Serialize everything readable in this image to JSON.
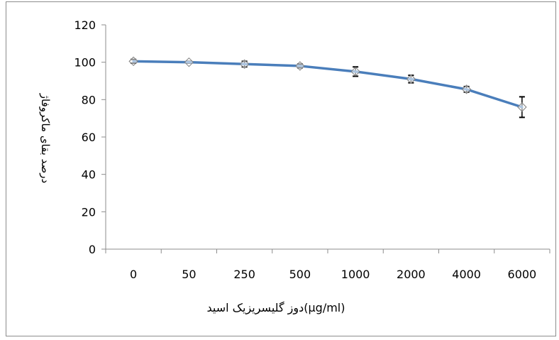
{
  "chart_data": {
    "type": "line",
    "xlabel": "دوز گلیسریزیک اسید(µg/ml)",
    "ylabel": "درصد بقای ماکروفاژ",
    "categories": [
      "0",
      "50",
      "250",
      "500",
      "1000",
      "2000",
      "4000",
      "6000"
    ],
    "ylim": [
      0,
      120
    ],
    "yticks": [
      0,
      20,
      40,
      60,
      80,
      100,
      120
    ],
    "grid": false,
    "legend": "none",
    "series": [
      {
        "values": [
          100.5,
          100,
          99,
          98,
          95,
          91,
          85.5,
          76
        ],
        "error": [
          1,
          0.5,
          1.5,
          1,
          2.5,
          2,
          1.5,
          5.5
        ],
        "color": "#4a7ebb",
        "marker": "diamond"
      }
    ]
  }
}
